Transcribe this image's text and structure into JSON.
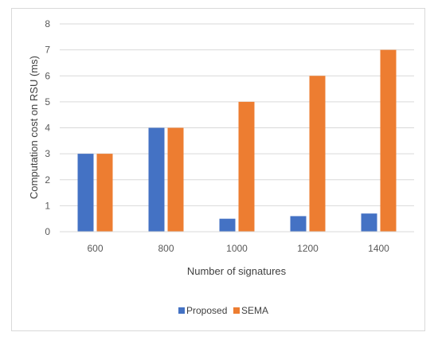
{
  "chart_data": {
    "type": "bar",
    "categories": [
      "600",
      "800",
      "1000",
      "1200",
      "1400"
    ],
    "series": [
      {
        "name": "Proposed",
        "values": [
          3,
          4,
          0.5,
          0.6,
          0.7
        ],
        "color": "#4472c4"
      },
      {
        "name": "SEMA",
        "values": [
          3,
          4,
          5,
          6,
          7
        ],
        "color": "#ed7d31"
      }
    ],
    "xlabel": "Number of signatures",
    "ylabel": "Computation cost on RSU (ms)",
    "ylim": [
      0,
      8
    ],
    "yticks": [
      "0",
      "1",
      "2",
      "3",
      "4",
      "5",
      "6",
      "7",
      "8"
    ],
    "grid": true,
    "legend_position": "bottom"
  }
}
